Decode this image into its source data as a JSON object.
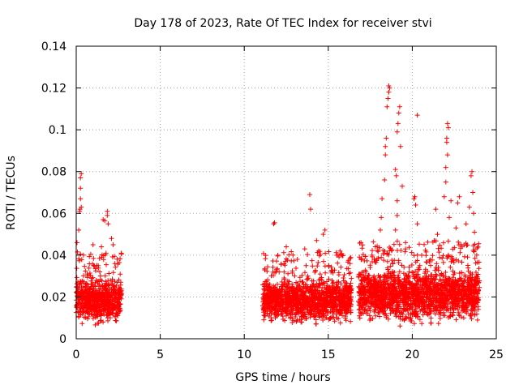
{
  "chart_data": {
    "type": "scatter",
    "title": "Day 178 of 2023, Rate Of TEC Index for receiver stvi",
    "xlabel": "GPS time / hours",
    "ylabel": "ROTI / TECUs",
    "xlim": [
      0,
      25
    ],
    "ylim": [
      0,
      0.14
    ],
    "xticks": [
      "0",
      "5",
      "10",
      "15",
      "20",
      "25"
    ],
    "yticks": [
      "0",
      "0.02",
      "0.04",
      "0.06",
      "0.08",
      "0.1",
      "0.12",
      "0.14"
    ],
    "grid": true,
    "marker": "plus",
    "color": "#ff0000",
    "data_segments": [
      {
        "x_range": [
          0.0,
          2.7
        ],
        "y_typical_range": [
          0.005,
          0.03
        ]
      },
      {
        "x_range": [
          11.1,
          16.4
        ],
        "y_typical_range": [
          0.005,
          0.03
        ]
      },
      {
        "x_range": [
          16.8,
          24.0
        ],
        "y_typical_range": [
          0.005,
          0.035
        ]
      }
    ],
    "outliers": [
      {
        "x": 0.05,
        "y": 0.046
      },
      {
        "x": 0.15,
        "y": 0.052
      },
      {
        "x": 0.2,
        "y": 0.061
      },
      {
        "x": 0.22,
        "y": 0.062
      },
      {
        "x": 0.25,
        "y": 0.067
      },
      {
        "x": 0.25,
        "y": 0.072
      },
      {
        "x": 0.25,
        "y": 0.077
      },
      {
        "x": 0.3,
        "y": 0.079
      },
      {
        "x": 0.3,
        "y": 0.063
      },
      {
        "x": 0.25,
        "y": 0.0405
      },
      {
        "x": 1.0,
        "y": 0.045
      },
      {
        "x": 1.5,
        "y": 0.044
      },
      {
        "x": 1.6,
        "y": 0.057
      },
      {
        "x": 1.7,
        "y": 0.0565
      },
      {
        "x": 1.85,
        "y": 0.059
      },
      {
        "x": 1.85,
        "y": 0.061
      },
      {
        "x": 1.9,
        "y": 0.055
      },
      {
        "x": 2.2,
        "y": 0.045
      },
      {
        "x": 2.1,
        "y": 0.048
      },
      {
        "x": 11.75,
        "y": 0.055
      },
      {
        "x": 11.8,
        "y": 0.0555
      },
      {
        "x": 12.0,
        "y": 0.04
      },
      {
        "x": 12.5,
        "y": 0.044
      },
      {
        "x": 13.6,
        "y": 0.043
      },
      {
        "x": 13.9,
        "y": 0.069
      },
      {
        "x": 13.95,
        "y": 0.062
      },
      {
        "x": 14.3,
        "y": 0.047
      },
      {
        "x": 14.7,
        "y": 0.05
      },
      {
        "x": 14.8,
        "y": 0.052
      },
      {
        "x": 15.7,
        "y": 0.042
      },
      {
        "x": 16.3,
        "y": 0.036
      },
      {
        "x": 17.6,
        "y": 0.04
      },
      {
        "x": 17.8,
        "y": 0.044
      },
      {
        "x": 18.1,
        "y": 0.052
      },
      {
        "x": 18.15,
        "y": 0.058
      },
      {
        "x": 18.2,
        "y": 0.067
      },
      {
        "x": 18.35,
        "y": 0.076
      },
      {
        "x": 18.4,
        "y": 0.088
      },
      {
        "x": 18.4,
        "y": 0.092
      },
      {
        "x": 18.45,
        "y": 0.096
      },
      {
        "x": 18.5,
        "y": 0.111
      },
      {
        "x": 18.55,
        "y": 0.115
      },
      {
        "x": 18.6,
        "y": 0.118
      },
      {
        "x": 18.6,
        "y": 0.121
      },
      {
        "x": 18.65,
        "y": 0.12
      },
      {
        "x": 19.0,
        "y": 0.052
      },
      {
        "x": 19.1,
        "y": 0.059
      },
      {
        "x": 19.1,
        "y": 0.066
      },
      {
        "x": 19.0,
        "y": 0.081
      },
      {
        "x": 19.05,
        "y": 0.078
      },
      {
        "x": 19.1,
        "y": 0.099
      },
      {
        "x": 19.15,
        "y": 0.103
      },
      {
        "x": 19.2,
        "y": 0.108
      },
      {
        "x": 19.25,
        "y": 0.111
      },
      {
        "x": 19.3,
        "y": 0.092
      },
      {
        "x": 19.4,
        "y": 0.073
      },
      {
        "x": 19.6,
        "y": 0.046
      },
      {
        "x": 20.1,
        "y": 0.067
      },
      {
        "x": 20.15,
        "y": 0.068
      },
      {
        "x": 20.2,
        "y": 0.064
      },
      {
        "x": 20.3,
        "y": 0.107
      },
      {
        "x": 20.3,
        "y": 0.055
      },
      {
        "x": 21.4,
        "y": 0.062
      },
      {
        "x": 21.5,
        "y": 0.05
      },
      {
        "x": 21.9,
        "y": 0.068
      },
      {
        "x": 22.0,
        "y": 0.075
      },
      {
        "x": 22.0,
        "y": 0.082
      },
      {
        "x": 22.05,
        "y": 0.094
      },
      {
        "x": 22.05,
        "y": 0.096
      },
      {
        "x": 22.1,
        "y": 0.103
      },
      {
        "x": 22.15,
        "y": 0.101
      },
      {
        "x": 22.1,
        "y": 0.088
      },
      {
        "x": 22.2,
        "y": 0.058
      },
      {
        "x": 22.3,
        "y": 0.066
      },
      {
        "x": 22.6,
        "y": 0.053
      },
      {
        "x": 22.7,
        "y": 0.065
      },
      {
        "x": 22.8,
        "y": 0.068
      },
      {
        "x": 23.2,
        "y": 0.055
      },
      {
        "x": 23.4,
        "y": 0.063
      },
      {
        "x": 23.5,
        "y": 0.078
      },
      {
        "x": 23.55,
        "y": 0.08
      },
      {
        "x": 23.6,
        "y": 0.07
      },
      {
        "x": 23.65,
        "y": 0.06
      },
      {
        "x": 23.7,
        "y": 0.051
      }
    ]
  }
}
